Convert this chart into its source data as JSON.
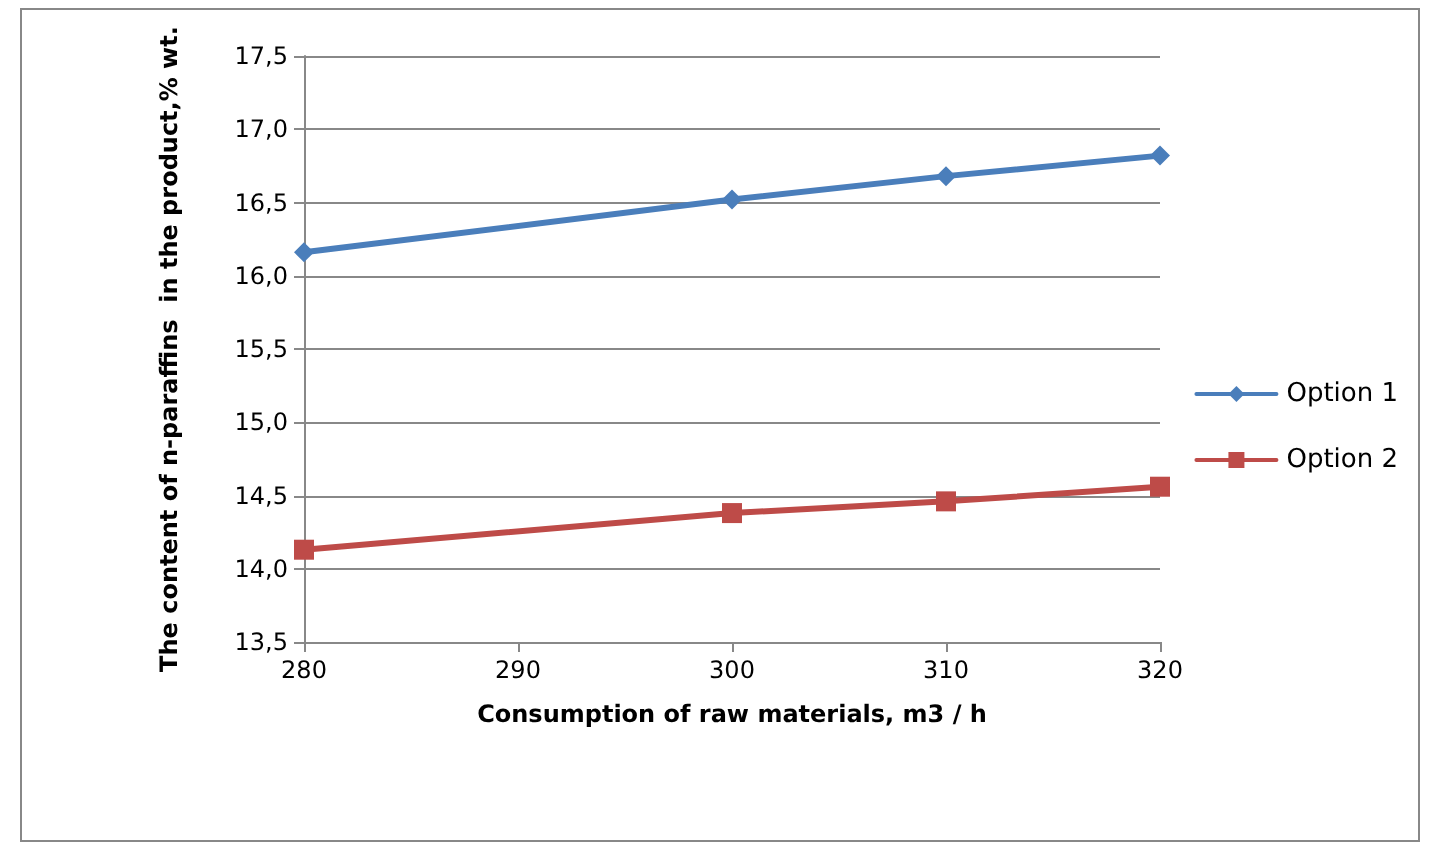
{
  "chart_data": {
    "type": "line",
    "xlabel": "Consumption of raw materials, m3 / h",
    "ylabel": "The content of n-paraffins  in the product,% wt.",
    "x": [
      280,
      300,
      310,
      320
    ],
    "series": [
      {
        "name": "Option 1",
        "color": "#4a7ebb",
        "marker": "diamond",
        "values": [
          16.16,
          16.52,
          16.68,
          16.82
        ]
      },
      {
        "name": "Option 2",
        "color": "#be4b48",
        "marker": "square",
        "values": [
          14.13,
          14.38,
          14.46,
          14.56
        ]
      }
    ],
    "xlim": [
      280,
      320
    ],
    "xticks": [
      280,
      290,
      300,
      310,
      320
    ],
    "ylim": [
      13.5,
      17.5
    ],
    "yticks": [
      {
        "value": 13.5,
        "label": "13,5"
      },
      {
        "value": 14,
        "label": "14,0"
      },
      {
        "value": 14.5,
        "label": "14,5"
      },
      {
        "value": 15,
        "label": "15,0"
      },
      {
        "value": 15.5,
        "label": "15,5"
      },
      {
        "value": 16,
        "label": "16,0"
      },
      {
        "value": 16.5,
        "label": "16,5"
      },
      {
        "value": 17,
        "label": "17,0"
      },
      {
        "value": 17.5,
        "label": "17,5"
      }
    ],
    "grid": "y",
    "legend": "right",
    "line_style": "solid"
  }
}
